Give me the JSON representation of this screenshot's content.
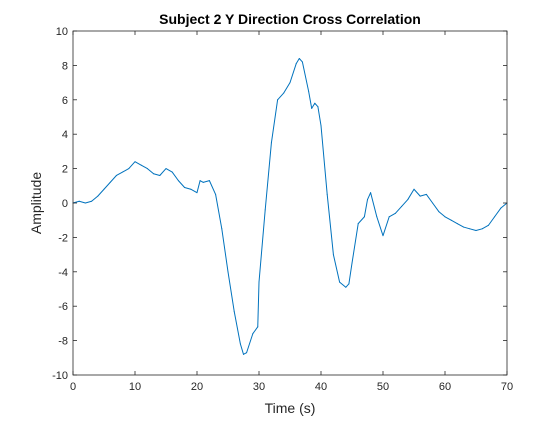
{
  "chart_data": {
    "type": "line",
    "title": "Subject 2 Y Direction Cross Correlation",
    "xlabel": "Time (s)",
    "ylabel": "Amplitude",
    "xlim": [
      0,
      70
    ],
    "ylim": [
      -10,
      10
    ],
    "xticks": [
      0,
      10,
      20,
      30,
      40,
      50,
      60,
      70
    ],
    "yticks": [
      -10,
      -8,
      -6,
      -4,
      -2,
      0,
      2,
      4,
      6,
      8,
      10
    ],
    "grid": false,
    "legend": "none",
    "series": [
      {
        "color": "#0072BD",
        "x": [
          0,
          1,
          2,
          3,
          4,
          5,
          6,
          7,
          8,
          9,
          10,
          11,
          12,
          13,
          14,
          15,
          16,
          17,
          18,
          19,
          20,
          20.5,
          21,
          22,
          23,
          24,
          25,
          26,
          27,
          27.5,
          28,
          29,
          29.8,
          30,
          31,
          32,
          33,
          34,
          35,
          36,
          36.5,
          37,
          38,
          38.5,
          39,
          39.5,
          40,
          41,
          42,
          43,
          44,
          44.5,
          45,
          46,
          47,
          47.5,
          48,
          49,
          50,
          51,
          52,
          53,
          54,
          55,
          56,
          57,
          58,
          59,
          60,
          61,
          62,
          63,
          64,
          65,
          66,
          67,
          68,
          69,
          70
        ],
        "y": [
          0,
          0.1,
          0,
          0.1,
          0.4,
          0.8,
          1.2,
          1.6,
          1.8,
          2.0,
          2.4,
          2.2,
          2.0,
          1.7,
          1.6,
          2.0,
          1.8,
          1.3,
          0.9,
          0.8,
          0.6,
          1.3,
          1.2,
          1.3,
          0.5,
          -1.5,
          -4.0,
          -6.3,
          -8.2,
          -8.8,
          -8.7,
          -7.6,
          -7.2,
          -4.6,
          -0.4,
          3.5,
          6.0,
          6.4,
          7.0,
          8.1,
          8.4,
          8.2,
          6.5,
          5.5,
          5.8,
          5.6,
          4.5,
          0.5,
          -3.0,
          -4.6,
          -4.9,
          -4.7,
          -3.5,
          -1.2,
          -0.8,
          0.2,
          0.6,
          -0.8,
          -1.9,
          -0.8,
          -0.6,
          -0.2,
          0.2,
          0.8,
          0.4,
          0.5,
          0,
          -0.5,
          -0.8,
          -1.0,
          -1.2,
          -1.4,
          -1.5,
          -1.6,
          -1.5,
          -1.3,
          -0.8,
          -0.3,
          0
        ]
      }
    ]
  }
}
